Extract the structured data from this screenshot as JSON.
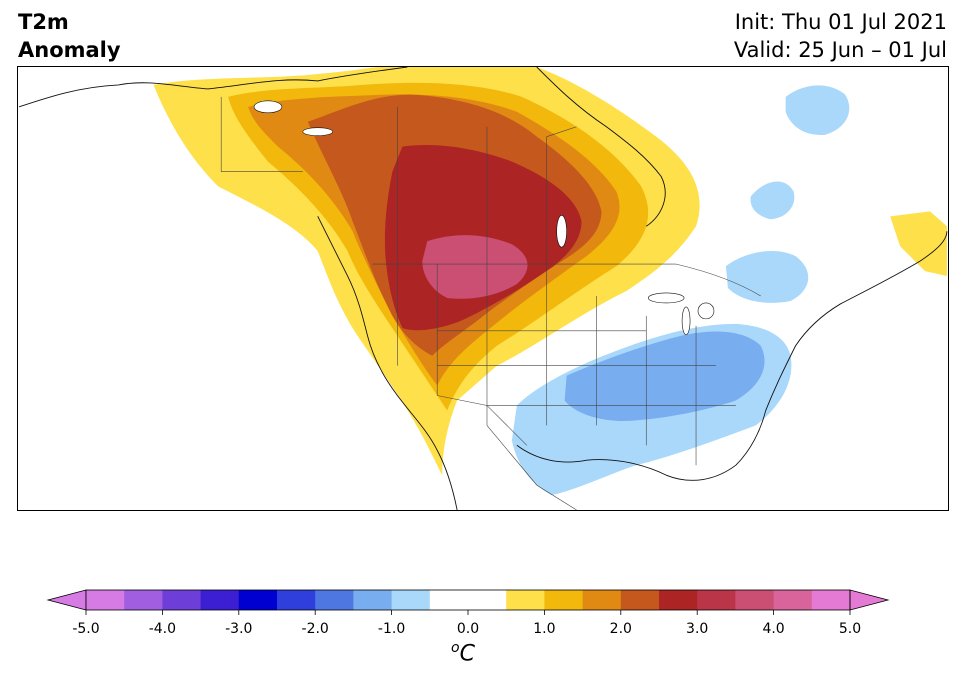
{
  "header": {
    "title_line1": "T2m",
    "title_line2": "Anomaly",
    "init": "Init: Thu 01 Jul 2021",
    "valid": "Valid: 25 Jun – 01 Jul"
  },
  "colorbar": {
    "levels": [
      "-5.0",
      "-4.0",
      "-3.0",
      "-2.0",
      "-1.0",
      "0.0",
      "1.0",
      "2.0",
      "3.0",
      "4.0",
      "5.0"
    ],
    "unit_base": "C",
    "unit_sup": "o",
    "colors": [
      "#d67be4",
      "#a15ee0",
      "#6d3fd8",
      "#3c1ed3",
      "#0000d0",
      "#2f3fdc",
      "#4f77e2",
      "#78aef0",
      "#aad8fb",
      "#ffffff",
      "#ffffff",
      "#fee04b",
      "#f2b80b",
      "#e08a14",
      "#c5581c",
      "#ac2424",
      "#bb3548",
      "#cb4e73",
      "#d9649c",
      "#e47ad4"
    ],
    "under_color": "#d67be4",
    "over_color": "#e47ad4"
  },
  "map_legend": {
    "colors": {
      "strong_warm": "#cb4e73",
      "warm3": "#ac2424",
      "warm2": "#c5581c",
      "warm15": "#e08a14",
      "warm1": "#f2b80b",
      "warm05": "#fee04b",
      "cool05": "#aad8fb",
      "cool1": "#78aef0"
    }
  }
}
